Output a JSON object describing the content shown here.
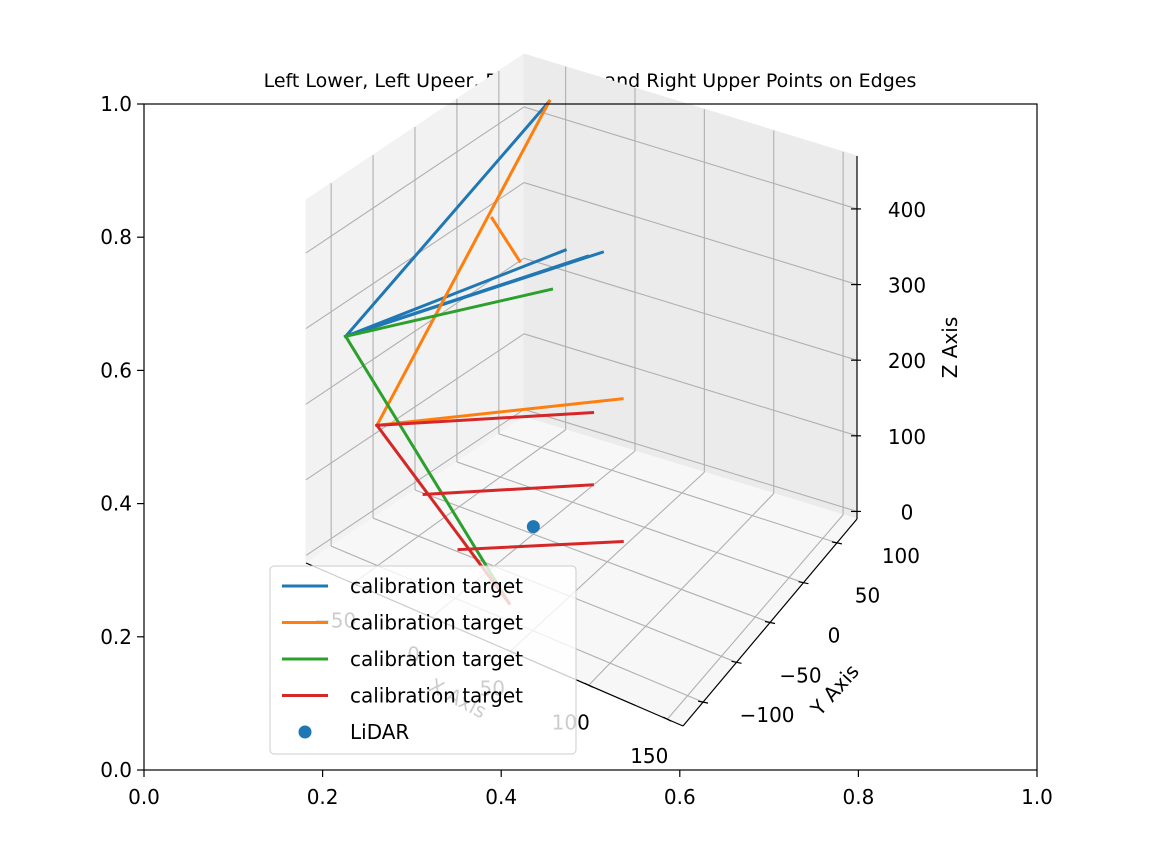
{
  "chart_data": {
    "type": "line",
    "title": "Left Lower, Left Upeer, Right Lower and Right Upper Points on Edges",
    "outer_axes": {
      "xlim": [
        0.0,
        1.0
      ],
      "ylim": [
        0.0,
        1.0
      ],
      "xticks": [
        "0.0",
        "0.2",
        "0.4",
        "0.6",
        "0.8",
        "1.0"
      ],
      "yticks": [
        "0.0",
        "0.2",
        "0.4",
        "0.6",
        "0.8",
        "1.0"
      ]
    },
    "axes3d": {
      "xlabel": "X Axis",
      "ylabel": "Y Axis",
      "zlabel": "Z Axis",
      "xlim": [
        -80,
        160
      ],
      "ylim": [
        -130,
        130
      ],
      "zlim": [
        -10,
        470
      ],
      "xticks": [
        "−50",
        "0",
        "50",
        "100",
        "150"
      ],
      "yticks": [
        "−100",
        "−50",
        "0",
        "50",
        "100"
      ],
      "zticks": [
        "0",
        "100",
        "200",
        "300",
        "400"
      ],
      "grid": true
    },
    "series": [
      {
        "name": "calibration target",
        "color": "#1f77b4",
        "lines": [
          [
            [
              -50,
              110,
              440
            ],
            [
              -60,
              -120,
              300
            ]
          ],
          [
            [
              -60,
              -120,
              300
            ],
            [
              5,
              60,
              310
            ]
          ],
          [
            [
              -60,
              -120,
              300
            ],
            [
              -5,
              50,
              320
            ]
          ],
          [
            [
              -60,
              -120,
              300
            ],
            [
              10,
              70,
              310
            ]
          ]
        ]
      },
      {
        "name": "calibration target",
        "color": "#ff7f0e",
        "lines": [
          [
            [
              -50,
              110,
              440
            ],
            [
              -40,
              -120,
              200
            ]
          ],
          [
            [
              -40,
              -120,
              200
            ],
            [
              55,
              10,
              200
            ]
          ],
          [
            [
              -50,
              40,
              340
            ],
            [
              -20,
              20,
              320
            ]
          ]
        ]
      },
      {
        "name": "calibration target",
        "color": "#2ca02c",
        "lines": [
          [
            [
              -60,
              -120,
              300
            ],
            [
              30,
              -90,
              0
            ]
          ],
          [
            [
              -60,
              -120,
              300
            ],
            [
              -20,
              60,
              250
            ]
          ]
        ]
      },
      {
        "name": "calibration target",
        "color": "#d62728",
        "lines": [
          [
            [
              -40,
              -120,
              200
            ],
            [
              30,
              -90,
              0
            ]
          ],
          [
            [
              -40,
              -120,
              200
            ],
            [
              40,
              0,
              180
            ]
          ],
          [
            [
              -20,
              -100,
              110
            ],
            [
              50,
              -20,
              110
            ]
          ],
          [
            [
              0,
              -95,
              50
            ],
            [
              70,
              -20,
              50
            ]
          ]
        ]
      },
      {
        "name": "LiDAR",
        "color": "#1f77b4",
        "points": [
          [
            0,
            0,
            0
          ]
        ]
      }
    ],
    "legend_position": "lower-left"
  }
}
